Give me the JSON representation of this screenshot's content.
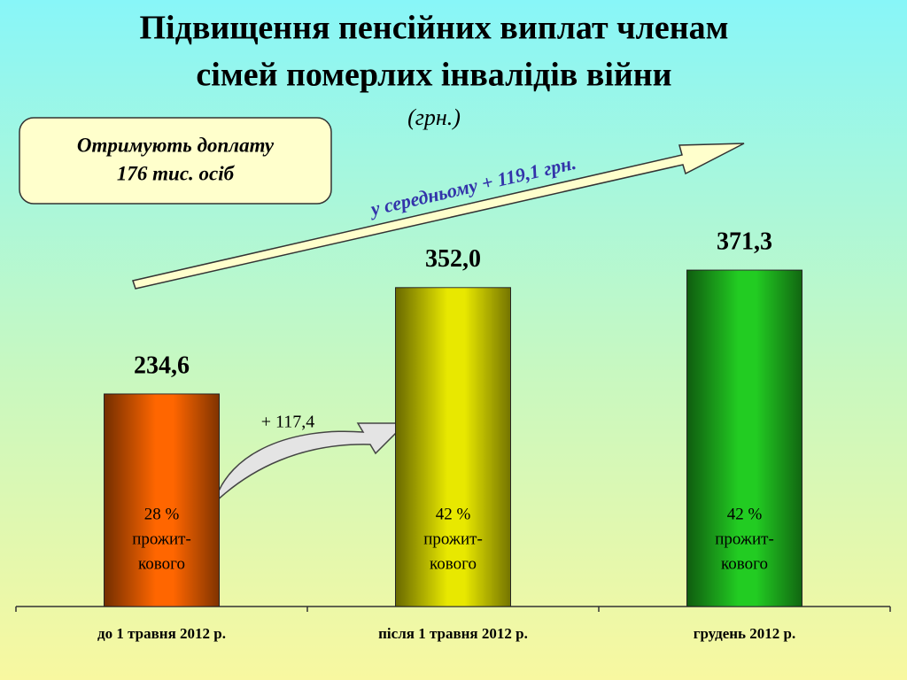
{
  "chart_data": {
    "type": "bar",
    "title": [
      "Підвищення пенсійних виплат членам",
      "сімей померлих інвалідів війни"
    ],
    "subtitle": "(грн.)",
    "categories": [
      "до 1 травня 2012 р.",
      "після 1 травня 2012 р.",
      "грудень 2012 р."
    ],
    "values": [
      234.6,
      352.0,
      371.3
    ],
    "value_labels": [
      "234,6",
      "352,0",
      "371,3"
    ],
    "colors": [
      "#ff6600",
      "#e8e800",
      "#22cc22"
    ],
    "bar_labels": [
      [
        "28 %",
        "прожит-",
        "кового"
      ],
      [
        "42 %",
        "прожит-",
        "кового"
      ],
      [
        "42 %",
        "прожит-",
        "кового"
      ]
    ],
    "ylim": [
      0,
      600
    ],
    "annotations": {
      "box": [
        "Отримують доплату",
        "176 тис. осіб"
      ],
      "trend": "у середньому + 119,1 грн.",
      "increase": "+ 117,4"
    }
  }
}
